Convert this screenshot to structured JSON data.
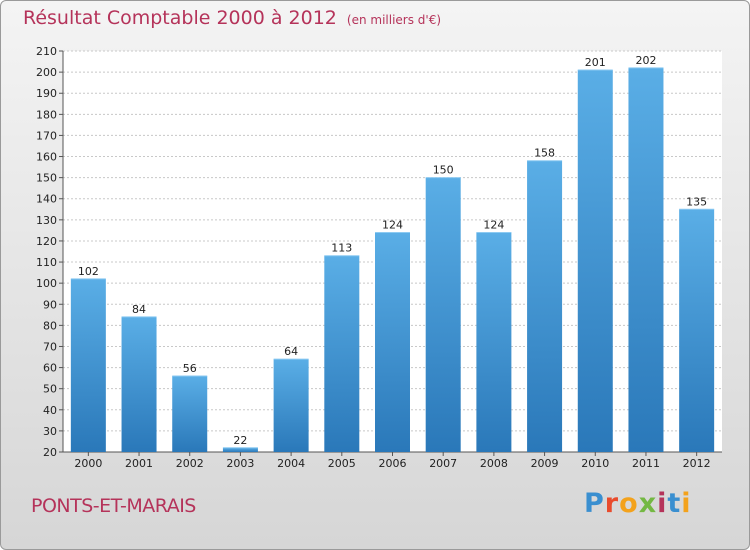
{
  "header": {
    "title": "Résultat Comptable 2000 à 2012",
    "unit": "(en milliers d'€)"
  },
  "footer": {
    "commune": "PONTS-ET-MARAIS",
    "logo": "Proxiti"
  },
  "colors": {
    "title": "#b5335a",
    "bar_top": "#5aaee6",
    "bar_bottom": "#2a78b9"
  },
  "chart_data": {
    "type": "bar",
    "title": "Résultat Comptable 2000 à 2012",
    "subtitle": "(en milliers d'€)",
    "xlabel": "",
    "ylabel": "",
    "categories": [
      "2000",
      "2001",
      "2002",
      "2003",
      "2004",
      "2005",
      "2006",
      "2007",
      "2008",
      "2009",
      "2010",
      "2011",
      "2012"
    ],
    "values": [
      102,
      84,
      56,
      22,
      64,
      113,
      124,
      150,
      124,
      158,
      201,
      202,
      135
    ],
    "ylim": [
      20,
      210
    ],
    "yticks": [
      20,
      30,
      40,
      50,
      60,
      70,
      80,
      90,
      100,
      110,
      120,
      130,
      140,
      150,
      160,
      170,
      180,
      190,
      200,
      210
    ],
    "grid": true,
    "legend": "none"
  }
}
